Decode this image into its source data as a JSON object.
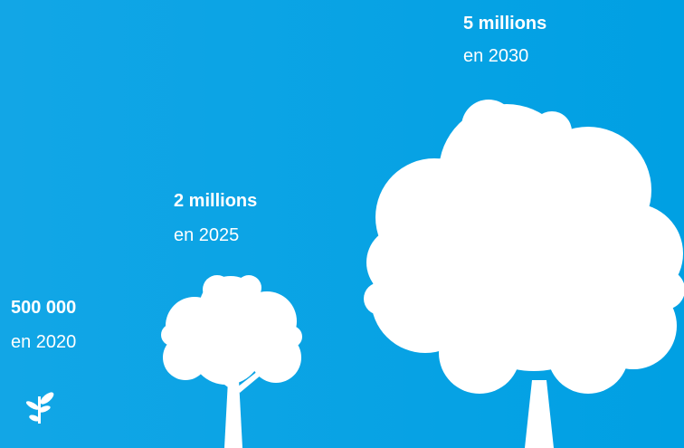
{
  "items": [
    {
      "amount": "500 000",
      "year": "en 2020"
    },
    {
      "amount": "2 millions",
      "year": "en 2025"
    },
    {
      "amount": "5 millions",
      "year": "en 2030"
    }
  ]
}
